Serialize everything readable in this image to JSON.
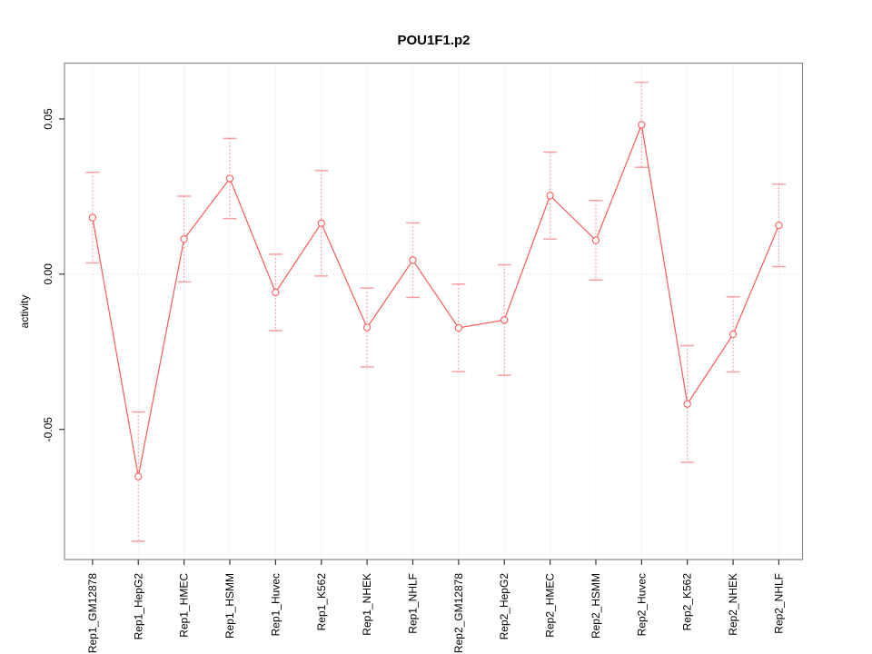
{
  "chart_data": {
    "type": "line",
    "title": "POU1F1.p2",
    "ylabel": "activity",
    "legend_position": "none",
    "grid": "vertical dotted gridline at every category; horizontal dotted line at y=0",
    "marker": "open-circle",
    "error_bars": "symmetric, dotted stems with horizontal caps",
    "categories": [
      "Rep1_GM12878",
      "Rep1_HepG2",
      "Rep1_HMEC",
      "Rep1_HSMM",
      "Rep1_Huvec",
      "Rep1_K562",
      "Rep1_NHEK",
      "Rep1_NHLF",
      "Rep2_GM12878",
      "Rep2_HepG2",
      "Rep2_HMEC",
      "Rep2_HSMM",
      "Rep2_Huvec",
      "Rep2_K562",
      "Rep2_NHEK",
      "Rep2_NHLF"
    ],
    "values": [
      0.0182,
      -0.0652,
      0.0113,
      0.0308,
      -0.0059,
      0.0164,
      -0.0172,
      0.0045,
      -0.0173,
      -0.0148,
      0.0253,
      0.0109,
      0.0481,
      -0.0418,
      -0.0194,
      0.0157
    ],
    "errors": [
      0.0146,
      0.0208,
      0.0138,
      0.0129,
      0.0123,
      0.017,
      0.0127,
      0.012,
      0.0141,
      0.0178,
      0.014,
      0.0128,
      0.0137,
      0.0188,
      0.0121,
      0.0133
    ],
    "yticks": [
      -0.05,
      0,
      0.05
    ],
    "ytick_labels": [
      "-0.05",
      "0.00",
      "0.05"
    ],
    "ylim": [
      -0.092,
      0.0675
    ],
    "colors": {
      "series": "#f75b5b",
      "error_bar": "#f9a0a0",
      "grid": "#d9d9d9",
      "box": "#8a8a8a",
      "tick": "#3a3a3a",
      "text": "#000000",
      "background": "#ffffff"
    }
  }
}
